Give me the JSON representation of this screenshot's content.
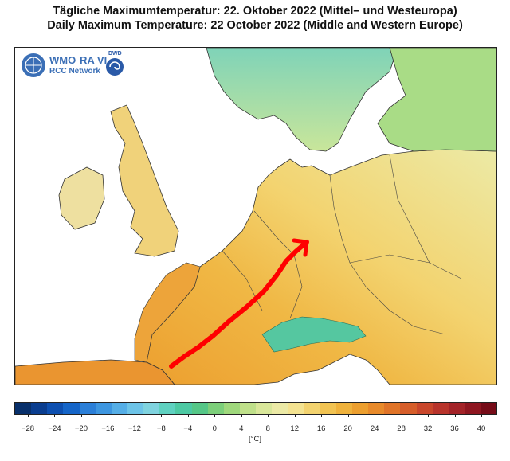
{
  "title_de": "Tägliche Maximumtemperatur:  22. Oktober 2022  (Mittel– und Westeuropa)",
  "title_en": "Daily Maximum Temperature:  22 October 2022  (Middle and Western Europe)",
  "logo": {
    "wmo": "WMO",
    "ravi": "RA VI",
    "network": "RCC Network",
    "dwd": "DWD"
  },
  "colorbar": {
    "unit": "[°C]",
    "ticks": [
      "−28",
      "−24",
      "−20",
      "−16",
      "−12",
      "−8",
      "−4",
      "0",
      "4",
      "8",
      "12",
      "16",
      "20",
      "24",
      "28",
      "32",
      "36",
      "40"
    ],
    "colors": [
      "#08306b",
      "#0a3d8f",
      "#0d4fb0",
      "#1565c8",
      "#2b7fd8",
      "#3d96e0",
      "#55aee6",
      "#6dc4e8",
      "#7fd3df",
      "#5fd1c0",
      "#4dc9a3",
      "#55c787",
      "#7ccf7a",
      "#9fd87c",
      "#bfe08a",
      "#d9e79a",
      "#eceaa6",
      "#f4e391",
      "#f3d36f",
      "#f1c352",
      "#efb23c",
      "#ec9f2f",
      "#e88a2a",
      "#e07428",
      "#d65e2a",
      "#c9472c",
      "#b8342c",
      "#a32328",
      "#8e1620",
      "#760c18"
    ]
  },
  "annotation": {
    "arrow_color": "#ff0000"
  }
}
